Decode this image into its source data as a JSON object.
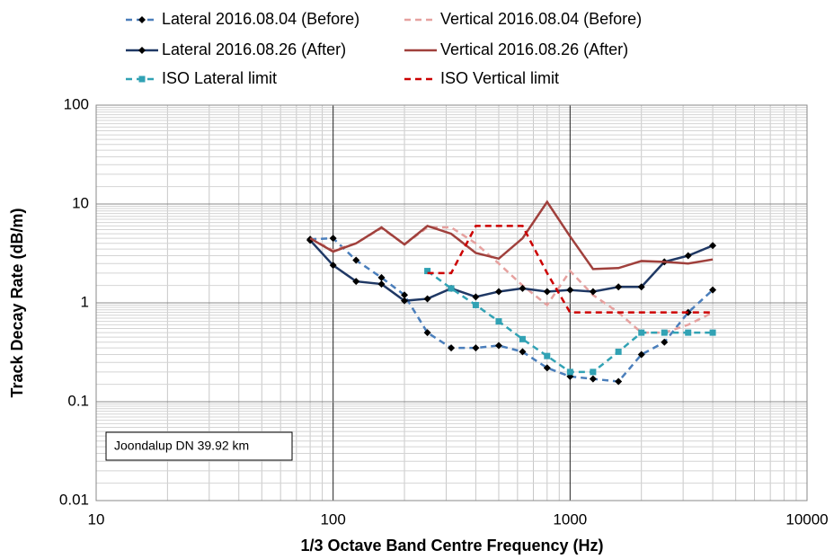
{
  "chart_data": {
    "type": "line",
    "x_label": "1/3 Octave Band Centre Frequency (Hz)",
    "y_label": "Track Decay Rate (dB/m)",
    "annotation": "Joondalup DN 39.92 km",
    "x": [
      80,
      100,
      125,
      160,
      200,
      250,
      315,
      400,
      500,
      630,
      800,
      1000,
      1250,
      1600,
      2000,
      2500,
      3150,
      4000
    ],
    "xlim": [
      10,
      10000
    ],
    "xticks": [
      10,
      100,
      1000,
      10000
    ],
    "ylim": [
      0.01,
      100
    ],
    "yticks": [
      0.01,
      0.1,
      1,
      10,
      100
    ],
    "log_x": true,
    "log_y": true,
    "grid": true,
    "series": [
      {
        "name": "Lateral 2016.08.04 (Before)",
        "color": "#4a7ebb",
        "dash": "dashed",
        "marker": "diamond",
        "marker_color": "#000000",
        "values": [
          4.4,
          4.5,
          2.7,
          1.8,
          1.2,
          0.5,
          0.35,
          0.35,
          0.37,
          0.32,
          0.22,
          0.18,
          0.17,
          0.16,
          0.3,
          0.4,
          0.8,
          1.35
        ]
      },
      {
        "name": "Vertical 2016.08.04 (Before)",
        "color": "#e6a19f",
        "dash": "dashed",
        "marker": "none",
        "values": [
          4.5,
          3.4,
          4.0,
          5.7,
          3.9,
          5.8,
          5.8,
          4.0,
          2.5,
          1.5,
          0.95,
          2.1,
          1.2,
          0.8,
          0.5,
          0.5,
          0.6,
          0.8
        ]
      },
      {
        "name": "Lateral 2016.08.26 (After)",
        "color": "#1f3864",
        "dash": "solid",
        "marker": "diamond",
        "marker_color": "#000000",
        "values": [
          4.3,
          2.4,
          1.65,
          1.55,
          1.05,
          1.1,
          1.4,
          1.15,
          1.3,
          1.4,
          1.3,
          1.35,
          1.3,
          1.45,
          1.45,
          2.6,
          3.0,
          3.8
        ]
      },
      {
        "name": "Vertical 2016.08.26 (After)",
        "color": "#a0403c",
        "dash": "solid",
        "marker": "none",
        "values": [
          4.5,
          3.3,
          4.0,
          5.8,
          3.9,
          6.0,
          5.0,
          3.2,
          2.8,
          4.5,
          10.5,
          4.7,
          2.2,
          2.25,
          2.65,
          2.6,
          2.5,
          2.75
        ]
      },
      {
        "name": "ISO Lateral limit",
        "color": "#31a2b4",
        "dash": "dashed",
        "marker": "square",
        "marker_color": "#31a2b4",
        "values": [
          null,
          null,
          null,
          null,
          null,
          2.1,
          1.4,
          0.95,
          0.65,
          0.43,
          0.29,
          0.2,
          0.2,
          0.32,
          0.5,
          0.5,
          0.5,
          0.5
        ]
      },
      {
        "name": "ISO Vertical limit",
        "color": "#cc0000",
        "dash": "dashed",
        "marker": "none",
        "values": [
          null,
          null,
          null,
          null,
          null,
          2.0,
          2.0,
          6.0,
          6.0,
          6.0,
          2.0,
          0.8,
          0.8,
          0.8,
          0.8,
          0.8,
          0.8,
          0.8
        ]
      }
    ]
  }
}
